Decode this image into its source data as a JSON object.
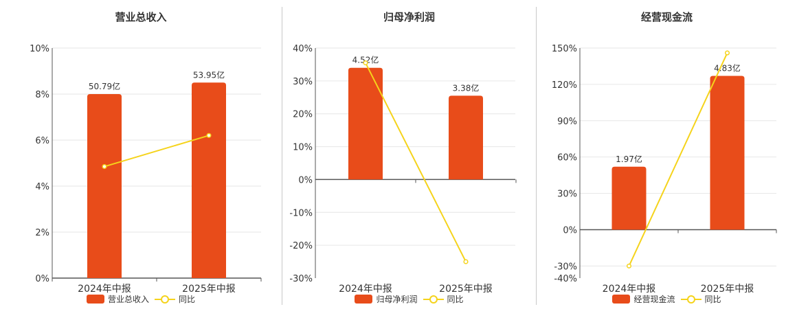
{
  "colors": {
    "bar": "#e84c1a",
    "line": "#f5d31b",
    "grid": "#e6e6e6",
    "axis": "#555555"
  },
  "chart_data": [
    {
      "type": "bar",
      "title": "营业总收入",
      "categories": [
        "2024年中报",
        "2025年中报"
      ],
      "series": [
        {
          "name": "营业总收入",
          "type": "bar",
          "values": [
            8.0,
            8.5
          ],
          "labels": [
            "50.79亿",
            "53.95亿"
          ]
        },
        {
          "name": "同比",
          "type": "line",
          "values": [
            4.85,
            6.2
          ]
        }
      ],
      "ylim": [
        0,
        10
      ],
      "yticks": [
        0,
        2,
        4,
        6,
        8,
        10
      ],
      "ytick_labels": [
        "0%",
        "2%",
        "4%",
        "6%",
        "8%",
        "10%"
      ],
      "legend": [
        "营业总收入",
        "同比"
      ],
      "legend_position": "bottom",
      "grid": true
    },
    {
      "type": "bar",
      "title": "归母净利润",
      "categories": [
        "2024年中报",
        "2025年中报"
      ],
      "series": [
        {
          "name": "归母净利润",
          "type": "bar",
          "values": [
            34.0,
            25.5
          ],
          "labels": [
            "4.52亿",
            "3.38亿"
          ]
        },
        {
          "name": "同比",
          "type": "line",
          "values": [
            35.5,
            -25.0
          ]
        }
      ],
      "ylim": [
        -30,
        40
      ],
      "yticks": [
        -30,
        -20,
        -10,
        0,
        10,
        20,
        30,
        40
      ],
      "ytick_labels": [
        "-30%",
        "-20%",
        "-10%",
        "0%",
        "10%",
        "20%",
        "30%",
        "40%"
      ],
      "legend": [
        "归母净利润",
        "同比"
      ],
      "legend_position": "bottom",
      "grid": true
    },
    {
      "type": "bar",
      "title": "经营现金流",
      "categories": [
        "2024年中报",
        "2025年中报"
      ],
      "series": [
        {
          "name": "经营现金流",
          "type": "bar",
          "values": [
            52,
            127
          ],
          "labels": [
            "1.97亿",
            "4.83亿"
          ]
        },
        {
          "name": "同比",
          "type": "line",
          "values": [
            -30,
            146
          ]
        }
      ],
      "ylim": [
        -40,
        150
      ],
      "yticks": [
        -40,
        -30,
        0,
        30,
        60,
        90,
        120,
        150
      ],
      "ytick_labels": [
        "-40%",
        "-30%",
        "0%",
        "30%",
        "60%",
        "90%",
        "120%",
        "150%"
      ],
      "legend": [
        "经营现金流",
        "同比"
      ],
      "legend_position": "bottom",
      "grid": true
    }
  ]
}
